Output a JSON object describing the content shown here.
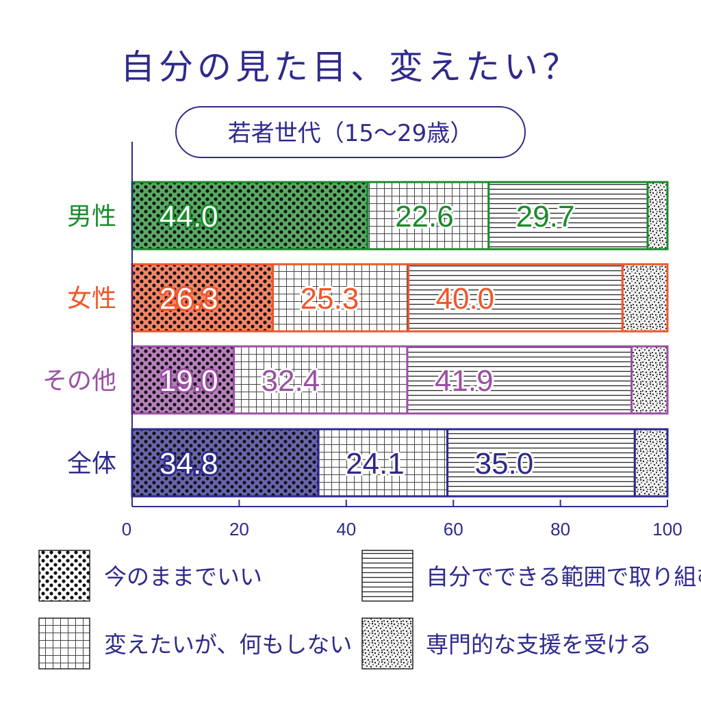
{
  "title": "自分の見た目、変えたい？",
  "subtitle": "若者世代（15〜29歳）",
  "chart_data": {
    "type": "bar",
    "orientation": "horizontal",
    "stacked": true,
    "categories": [
      "男性",
      "女性",
      "その他",
      "全体"
    ],
    "category_colors": [
      "#1a8a2a",
      "#f0562b",
      "#9b4fa3",
      "#2e2a8c"
    ],
    "series": [
      {
        "name": "今のままでいい",
        "values": [
          44.0,
          26.3,
          19.0,
          34.8
        ],
        "pattern": "dots"
      },
      {
        "name": "変えたいが、何もしない",
        "values": [
          22.6,
          25.3,
          32.4,
          24.1
        ],
        "pattern": "grid"
      },
      {
        "name": "自分でできる範囲で取り組む",
        "values": [
          29.7,
          40.0,
          41.9,
          35.0
        ],
        "pattern": "horizontal-lines"
      },
      {
        "name": "専門的な支援を受ける",
        "values": [
          3.7,
          8.4,
          6.7,
          6.1
        ],
        "pattern": "speckle"
      }
    ],
    "value_labels": [
      [
        "44.0",
        "22.6",
        "29.7"
      ],
      [
        "26.3",
        "25.3",
        "40.0"
      ],
      [
        "19.0",
        "32.4",
        "41.9"
      ],
      [
        "34.8",
        "24.1",
        "35.0"
      ]
    ],
    "xlim": [
      0,
      100
    ],
    "xticks": [
      "0",
      "20",
      "40",
      "60",
      "80",
      "100"
    ],
    "legend_position": "bottom",
    "axis_color": "#2e2a8c"
  }
}
